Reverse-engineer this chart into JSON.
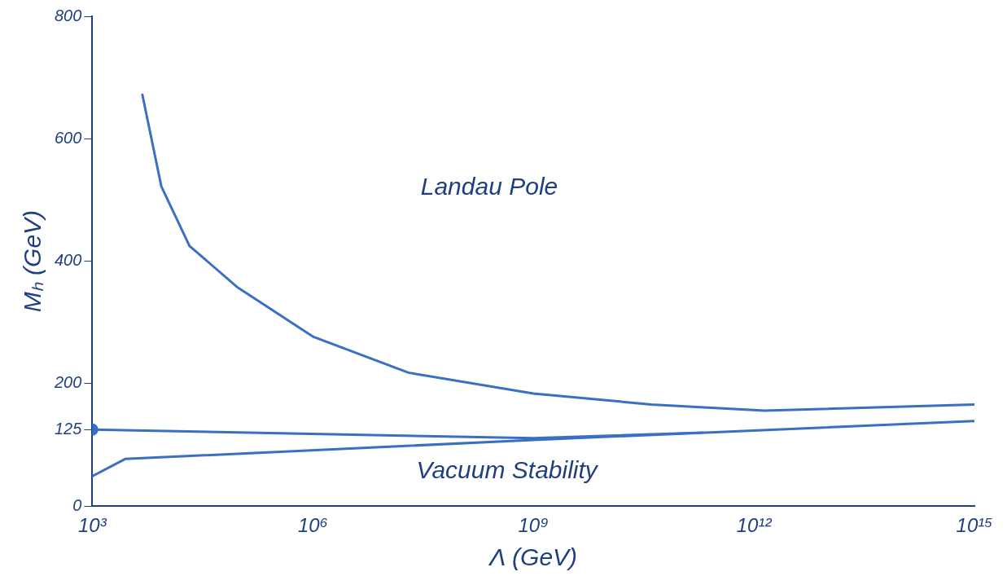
{
  "chart_data": {
    "type": "line",
    "xlabel": "Λ (GeV)",
    "ylabel": "Mₕ (GeV)",
    "log": "x",
    "xlim": [
      1000,
      1000000000000000
    ],
    "ylim": [
      0,
      800
    ],
    "xticks": [
      {
        "value": 1000,
        "label": "10³"
      },
      {
        "value": 1000000,
        "label": "10⁶"
      },
      {
        "value": 1000000000,
        "label": "10⁹"
      },
      {
        "value": 1000000000000,
        "label": "10¹²"
      },
      {
        "value": 1000000000000000,
        "label": "10¹⁵"
      }
    ],
    "yticks": [
      0,
      125,
      200,
      400,
      600,
      800
    ],
    "grid": false,
    "legend": false,
    "marker": "none",
    "series": [
      {
        "color": "#3b6fc4",
        "x": [
          4800,
          8700,
          21000,
          93000,
          1000000,
          20000000,
          1000000000,
          40000000000,
          1400000000000,
          1000000000000000
        ],
        "values": [
          672,
          522,
          425,
          358,
          277,
          218,
          184,
          166,
          156,
          166
        ]
      },
      {
        "color": "#3b6fc4",
        "x": [
          1000,
          1000000000,
          200000000000
        ],
        "values": [
          125,
          111,
          120
        ]
      },
      {
        "color": "#3b6fc4",
        "x": [
          1000,
          2800,
          1000000000,
          1000000000000000
        ],
        "values": [
          49,
          77,
          108,
          139
        ]
      },
      {
        "type": "scatter",
        "color": "#3b6fc4",
        "marker": "circle",
        "x": [
          1000
        ],
        "values": [
          125
        ]
      }
    ],
    "annotations": [
      "Landau Pole",
      "Vacuum Stability"
    ]
  }
}
